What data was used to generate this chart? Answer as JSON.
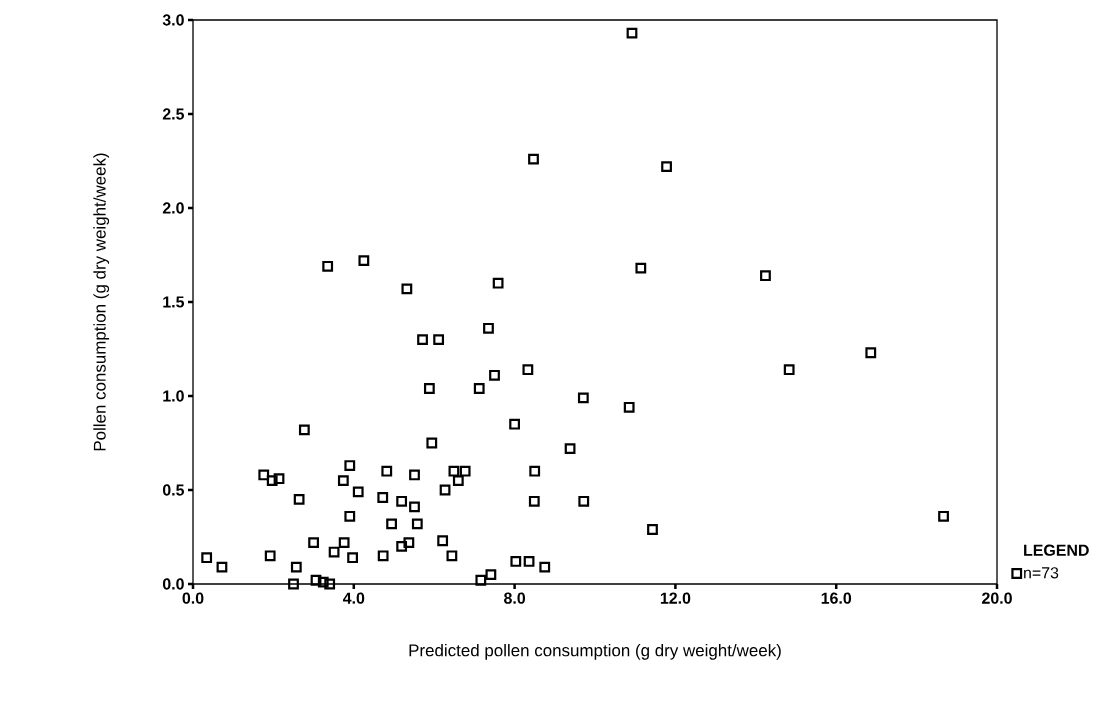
{
  "chart_data": {
    "type": "scatter",
    "xlabel": "Predicted pollen consumption (g dry weight/week)",
    "ylabel": "Pollen consumption (g dry weight/week)",
    "legend_title": "LEGEND",
    "legend": "bottom right",
    "marker": "square",
    "xlim": [
      0,
      20
    ],
    "ylim": [
      0,
      3
    ],
    "xticks": [
      {
        "value": 0,
        "label": "0.0"
      },
      {
        "value": 4,
        "label": "4.0"
      },
      {
        "value": 8,
        "label": "8.0"
      },
      {
        "value": 12,
        "label": "12.0"
      },
      {
        "value": 16,
        "label": "16.0"
      },
      {
        "value": 20,
        "label": "20.0"
      }
    ],
    "yticks": [
      {
        "value": 0,
        "label": "0.0"
      },
      {
        "value": 0.5,
        "label": "0.5"
      },
      {
        "value": 1,
        "label": "1.0"
      },
      {
        "value": 1.5,
        "label": "1.5"
      },
      {
        "value": 2,
        "label": "2.0"
      },
      {
        "value": 2.5,
        "label": "2.5"
      },
      {
        "value": 3,
        "label": "3.0"
      }
    ],
    "series": [
      {
        "name": "n=73",
        "color": "#000000",
        "x": [
          10.92,
          8.47,
          11.78,
          3.35,
          4.25,
          5.32,
          7.59,
          7.35,
          5.71,
          6.11,
          11.14,
          14.24,
          16.86,
          8.33,
          7.5,
          5.88,
          7.12,
          9.71,
          2.77,
          8.0,
          5.94,
          9.38,
          1.76,
          1.97,
          2.14,
          3.9,
          3.74,
          4.82,
          5.51,
          6.49,
          6.77,
          6.6,
          8.5,
          4.11,
          2.64,
          4.72,
          5.19,
          5.51,
          6.27,
          8.49,
          9.72,
          3.9,
          4.94,
          5.58,
          3.0,
          3.76,
          3.51,
          3.97,
          4.73,
          5.19,
          5.37,
          6.21,
          6.44,
          0.34,
          0.72,
          1.92,
          2.57,
          2.5,
          3.06,
          3.24,
          3.4,
          7.16,
          7.41,
          8.03,
          8.36,
          8.75,
          10.85,
          14.83,
          11.43,
          18.67
        ],
        "values": [
          2.93,
          2.26,
          2.22,
          1.69,
          1.72,
          1.57,
          1.6,
          1.36,
          1.3,
          1.3,
          1.68,
          1.64,
          1.23,
          1.14,
          1.11,
          1.04,
          1.04,
          0.99,
          0.82,
          0.85,
          0.75,
          0.72,
          0.58,
          0.55,
          0.56,
          0.63,
          0.55,
          0.6,
          0.58,
          0.6,
          0.6,
          0.55,
          0.6,
          0.49,
          0.45,
          0.46,
          0.44,
          0.41,
          0.5,
          0.44,
          0.44,
          0.36,
          0.32,
          0.32,
          0.22,
          0.22,
          0.17,
          0.14,
          0.15,
          0.2,
          0.22,
          0.23,
          0.15,
          0.14,
          0.09,
          0.15,
          0.09,
          0.0,
          0.02,
          0.01,
          0.0,
          0.02,
          0.05,
          0.12,
          0.12,
          0.09,
          0.94,
          1.14,
          0.29,
          0.36
        ]
      }
    ]
  }
}
